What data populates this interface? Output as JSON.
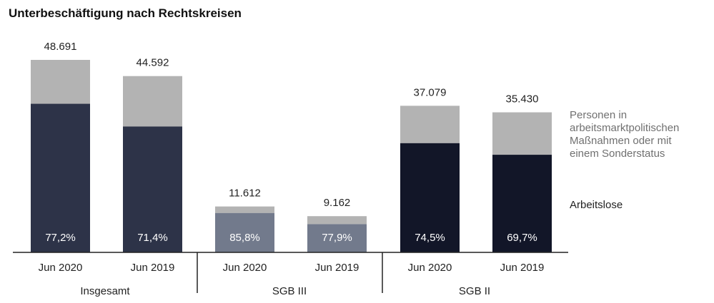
{
  "chart_data": {
    "type": "bar",
    "stacked": true,
    "title": "Unterbeschäftigung nach Rechtskreisen",
    "xlabel": "",
    "ylabel": "",
    "ylim": [
      0,
      50000
    ],
    "grid": false,
    "legend_position": "right",
    "groups": [
      {
        "name": "Insgesamt",
        "bars": [
          {
            "category": "Jun 2020",
            "total": 48691,
            "total_label": "48.691",
            "share_label": "77,2%",
            "share": 0.772,
            "color": "#2d3348"
          },
          {
            "category": "Jun 2019",
            "total": 44592,
            "total_label": "44.592",
            "share_label": "71,4%",
            "share": 0.714,
            "color": "#2d3348"
          }
        ]
      },
      {
        "name": "SGB III",
        "bars": [
          {
            "category": "Jun 2020",
            "total": 11612,
            "total_label": "11.612",
            "share_label": "85,8%",
            "share": 0.858,
            "color": "#727a8c"
          },
          {
            "category": "Jun 2019",
            "total": 9162,
            "total_label": "9.162",
            "share_label": "77,9%",
            "share": 0.779,
            "color": "#727a8c"
          }
        ]
      },
      {
        "name": "SGB II",
        "bars": [
          {
            "category": "Jun 2020",
            "total": 37079,
            "total_label": "37.079",
            "share_label": "74,5%",
            "share": 0.745,
            "color": "#121628"
          },
          {
            "category": "Jun 2019",
            "total": 35430,
            "total_label": "35.430",
            "share_label": "69,7%",
            "share": 0.697,
            "color": "#121628"
          }
        ]
      }
    ],
    "series": [
      {
        "name": "Arbeitslose",
        "color": "#2d3348"
      },
      {
        "name": "Personen in arbeitsmarktpolitischen Maßnahmen oder mit einem Sonderstatus",
        "color": "#b3b3b3"
      }
    ]
  }
}
